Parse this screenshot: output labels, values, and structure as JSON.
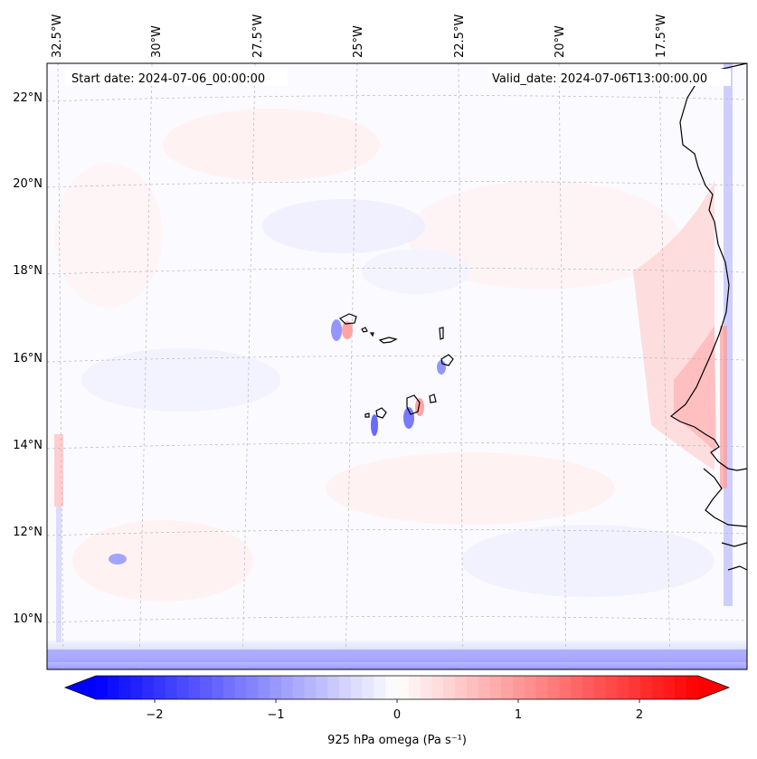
{
  "map": {
    "start_label": "Start date: 2024-07-06_00:00:00",
    "valid_label": "Valid_date: 2024-07-06T13:00:00.00",
    "lon_labels": [
      "32.5°W",
      "30°W",
      "27.5°W",
      "25°W",
      "22.5°W",
      "20°W",
      "17.5°W"
    ],
    "lat_labels": [
      "22°N",
      "20°N",
      "18°N",
      "16°N",
      "14°N",
      "12°N",
      "10°N"
    ],
    "gridlines": true,
    "colormap": "bwr",
    "coastline_color": "#000000"
  },
  "colorbar": {
    "label": "925 hPa omega (Pa s⁻¹)",
    "ticks": [
      "−2",
      "−1",
      "0",
      "1",
      "2"
    ],
    "range": [
      -2.6,
      2.6
    ],
    "extend": "both",
    "min_color": "#0000ff",
    "mid_color": "#ffffff",
    "max_color": "#ff0000"
  }
}
